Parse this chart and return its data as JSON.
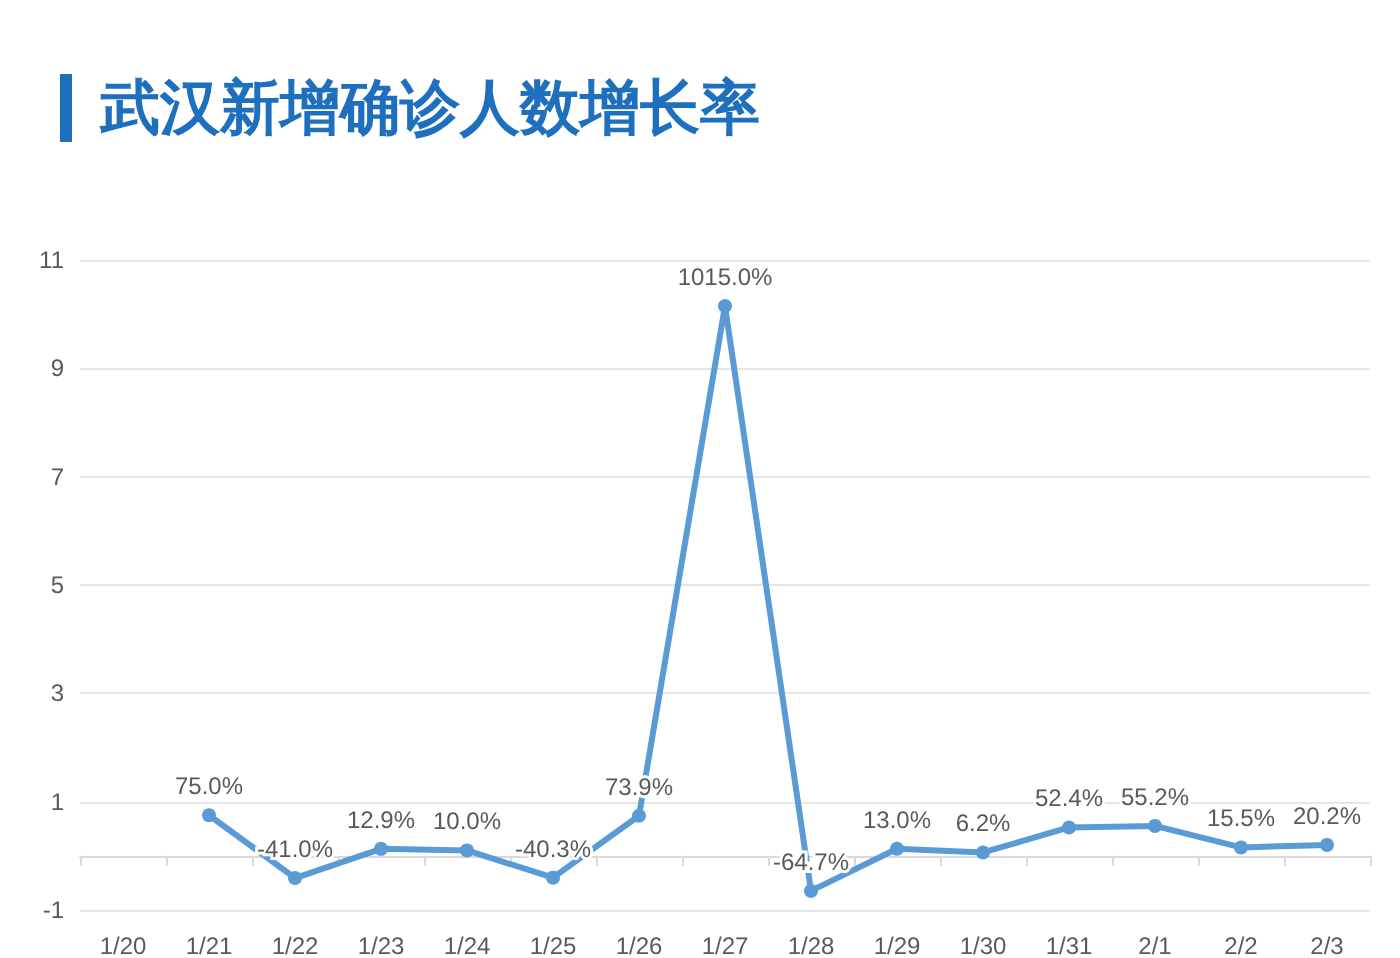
{
  "chart_data": {
    "type": "line",
    "title": "武汉新增确诊人数增长率",
    "categories": [
      "1/20",
      "1/21",
      "1/22",
      "1/23",
      "1/24",
      "1/25",
      "1/26",
      "1/27",
      "1/28",
      "1/29",
      "1/30",
      "1/31",
      "2/1",
      "2/2",
      "2/3"
    ],
    "series": [
      {
        "color": "#5b9bd5",
        "values": [
          null,
          0.75,
          -0.41,
          0.129,
          0.1,
          -0.403,
          0.739,
          10.15,
          -0.647,
          0.13,
          0.062,
          0.524,
          0.552,
          0.155,
          0.202
        ],
        "value_labels": [
          null,
          "75.0%",
          "-41.0%",
          "12.9%",
          "10.0%",
          "-40.3%",
          "73.9%",
          "1015.0%",
          "-64.7%",
          "13.0%",
          "6.2%",
          "52.4%",
          "55.2%",
          "15.5%",
          "20.2%"
        ]
      }
    ],
    "ylim": [
      -1,
      11
    ],
    "yticks": [
      -1,
      1,
      3,
      5,
      7,
      9,
      11
    ],
    "grid": "y",
    "marker": "circle",
    "line_style": "solid"
  }
}
